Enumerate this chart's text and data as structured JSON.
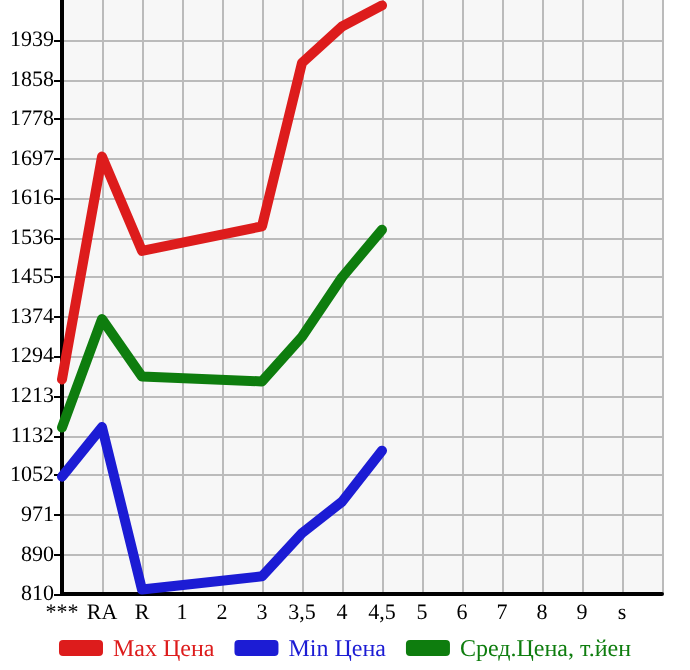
{
  "chart_data": {
    "type": "line",
    "categories": [
      "***",
      "RA",
      "R",
      "1",
      "2",
      "3",
      "3,5",
      "4",
      "4,5",
      "5",
      "6",
      "7",
      "8",
      "9",
      "s",
      null
    ],
    "series": [
      {
        "name": "Max Цена",
        "color": "#dd1c1c",
        "values": [
          1247,
          1701,
          1509,
          null,
          null,
          1559,
          1892,
          1966,
          2009,
          null,
          null,
          null,
          null,
          null,
          null,
          null
        ]
      },
      {
        "name": "Min Цена",
        "color": "#1c1cd4",
        "values": [
          1049,
          1150,
          819,
          null,
          null,
          846,
          934,
          998,
          1102,
          null,
          null,
          null,
          null,
          null,
          null,
          null
        ]
      },
      {
        "name": "Сред.Цена, т.йен",
        "color": "#0e7d0e",
        "values": [
          1149,
          1370,
          1253,
          null,
          null,
          1243,
          1334,
          1455,
          1552,
          null,
          null,
          null,
          null,
          null,
          null,
          null
        ]
      }
    ],
    "ylim": [
      810,
      2020
    ],
    "yticks": [
      810,
      890,
      971,
      1052,
      1132,
      1213,
      1294,
      1374,
      1455,
      1536,
      1616,
      1697,
      1778,
      1858,
      1939
    ],
    "grid": true,
    "legend": "bottom",
    "marker": "none",
    "line_style": "solid"
  }
}
